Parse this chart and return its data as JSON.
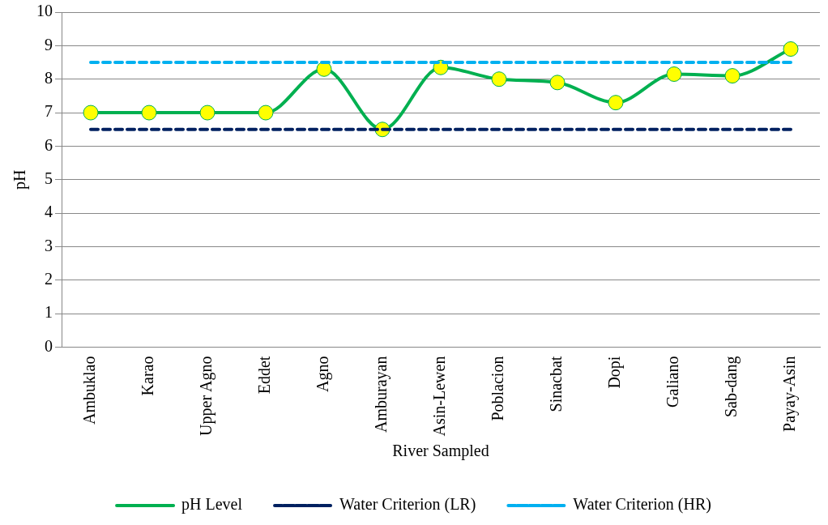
{
  "chart_data": {
    "type": "line",
    "xlabel": "River Sampled",
    "ylabel": "pH",
    "categories": [
      "Ambuklao",
      "Karao",
      "Upper Agno",
      "Eddet",
      "Agno",
      "Amburayan",
      "Asin-Lewen",
      "Poblacion",
      "Sinacbat",
      "Dopi",
      "Galiano",
      "Sab-dang",
      "Payay-Asin"
    ],
    "series": [
      {
        "name": "pH Level",
        "color": "#00b050",
        "marker": "circle",
        "line_style": "solid",
        "values": [
          7,
          7,
          7,
          7,
          8.3,
          6.5,
          8.35,
          8.0,
          7.9,
          7.3,
          8.15,
          8.1,
          8.9
        ]
      },
      {
        "name": "Water Criterion (LR)",
        "color": "#002060",
        "marker": "none",
        "line_style": "dashed",
        "values": [
          6.5,
          6.5,
          6.5,
          6.5,
          6.5,
          6.5,
          6.5,
          6.5,
          6.5,
          6.5,
          6.5,
          6.5,
          6.5
        ]
      },
      {
        "name": "Water Criterion (HR)",
        "color": "#00b0f0",
        "marker": "none",
        "line_style": "dashed",
        "values": [
          8.5,
          8.5,
          8.5,
          8.5,
          8.5,
          8.5,
          8.5,
          8.5,
          8.5,
          8.5,
          8.5,
          8.5,
          8.5
        ]
      }
    ],
    "ylim": [
      0,
      10
    ],
    "yticks": [
      0,
      1,
      2,
      3,
      4,
      5,
      6,
      7,
      8,
      9,
      10
    ],
    "grid": "y",
    "legend": "bottom"
  }
}
